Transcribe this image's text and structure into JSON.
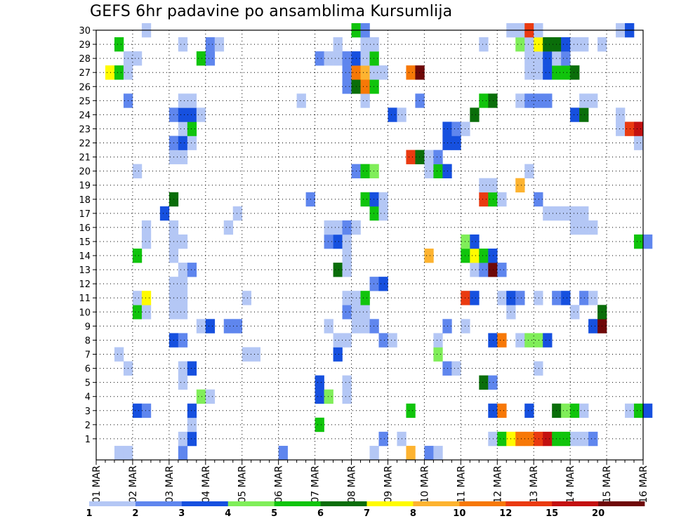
{
  "chart_data": {
    "type": "heatmap",
    "title": "GEFS 6hr padavine po ansamblima Kursumlija",
    "xlabel": "",
    "ylabel": "",
    "x_ticks": [
      "01 MAR",
      "02 MAR",
      "03 MAR",
      "04 MAR",
      "05 MAR",
      "06 MAR",
      "07 MAR",
      "08 MAR",
      "09 MAR",
      "10 MAR",
      "11 MAR",
      "12 MAR",
      "13 MAR",
      "14 MAR",
      "15 MAR",
      "16 MAR"
    ],
    "x_range_days": [
      0,
      15
    ],
    "step_hours": 6,
    "y_ticks": [
      1,
      2,
      3,
      4,
      5,
      6,
      7,
      8,
      9,
      10,
      11,
      12,
      13,
      14,
      15,
      16,
      17,
      18,
      19,
      20,
      21,
      22,
      23,
      24,
      25,
      26,
      27,
      28,
      29,
      30
    ],
    "y_range": [
      0,
      30
    ],
    "grid": "dotted",
    "legend": {
      "placement": "bottom",
      "labels": [
        "1",
        "2",
        "3",
        "4",
        "5",
        "6",
        "7",
        "8",
        "10",
        "12",
        "15",
        "20"
      ],
      "colors": [
        "#b4c7f5",
        "#5f86ee",
        "#1650df",
        "#80ee59",
        "#10c40c",
        "#0a6e0a",
        "#fffb00",
        "#fdb330",
        "#f77807",
        "#ea3a10",
        "#c31010",
        "#6f0808"
      ]
    },
    "members": [
      {
        "member": 0,
        "cells": [
          [
            2,
            1
          ],
          [
            3,
            1
          ],
          [
            9,
            2
          ],
          [
            20,
            2
          ],
          [
            30,
            1
          ],
          [
            34,
            8
          ],
          [
            36,
            2
          ],
          [
            37,
            1
          ]
        ]
      },
      {
        "member": 1,
        "cells": [
          [
            9,
            1
          ],
          [
            10,
            3
          ],
          [
            31,
            2
          ],
          [
            33,
            1
          ],
          [
            43,
            1
          ],
          [
            44,
            5
          ],
          [
            45,
            7
          ],
          [
            46,
            9
          ],
          [
            47,
            9
          ],
          [
            48,
            10
          ],
          [
            49,
            11
          ],
          [
            50,
            5
          ],
          [
            51,
            5
          ],
          [
            52,
            1
          ],
          [
            53,
            1
          ],
          [
            54,
            2
          ]
        ]
      },
      {
        "member": 2,
        "cells": [
          [
            10,
            1
          ],
          [
            24,
            5
          ]
        ]
      },
      {
        "member": 3,
        "cells": [
          [
            4,
            3
          ],
          [
            5,
            2
          ],
          [
            10,
            3
          ],
          [
            34,
            5
          ],
          [
            43,
            3
          ],
          [
            44,
            9
          ],
          [
            47,
            3
          ],
          [
            50,
            6
          ],
          [
            51,
            4
          ],
          [
            52,
            5
          ],
          [
            53,
            1
          ],
          [
            58,
            1
          ],
          [
            59,
            5
          ],
          [
            60,
            3
          ]
        ]
      },
      {
        "member": 4,
        "cells": [
          [
            11,
            4
          ],
          [
            12,
            1
          ],
          [
            24,
            3
          ],
          [
            25,
            4
          ],
          [
            27,
            1
          ]
        ]
      },
      {
        "member": 5,
        "cells": [
          [
            9,
            1
          ],
          [
            24,
            3
          ],
          [
            27,
            1
          ],
          [
            42,
            6
          ],
          [
            43,
            2
          ]
        ]
      },
      {
        "member": 6,
        "cells": [
          [
            3,
            1
          ],
          [
            9,
            1
          ],
          [
            10,
            3
          ],
          [
            38,
            2
          ],
          [
            39,
            1
          ],
          [
            48,
            1
          ]
        ]
      },
      {
        "member": 7,
        "cells": [
          [
            2,
            1
          ],
          [
            16,
            1
          ],
          [
            17,
            1
          ],
          [
            26,
            3
          ],
          [
            37,
            4
          ]
        ]
      },
      {
        "member": 8,
        "cells": [
          [
            8,
            3
          ],
          [
            9,
            2
          ],
          [
            26,
            1
          ],
          [
            27,
            1
          ],
          [
            31,
            2
          ],
          [
            32,
            1
          ],
          [
            37,
            1
          ],
          [
            43,
            3
          ],
          [
            44,
            9
          ],
          [
            46,
            1
          ],
          [
            47,
            4
          ],
          [
            48,
            4
          ],
          [
            49,
            3
          ]
        ]
      },
      {
        "member": 9,
        "cells": [
          [
            11,
            1
          ],
          [
            12,
            3
          ],
          [
            14,
            2
          ],
          [
            15,
            2
          ],
          [
            25,
            1
          ],
          [
            28,
            1
          ],
          [
            29,
            1
          ],
          [
            30,
            2
          ],
          [
            38,
            2
          ],
          [
            40,
            1
          ],
          [
            54,
            3
          ],
          [
            55,
            12
          ]
        ]
      },
      {
        "member": 10,
        "cells": [
          [
            4,
            5
          ],
          [
            5,
            1
          ],
          [
            8,
            1
          ],
          [
            9,
            1
          ],
          [
            27,
            2
          ],
          [
            28,
            1
          ],
          [
            29,
            1
          ],
          [
            45,
            1
          ],
          [
            52,
            1
          ],
          [
            55,
            6
          ]
        ]
      },
      {
        "member": 11,
        "cells": [
          [
            4,
            1
          ],
          [
            5,
            7
          ],
          [
            8,
            1
          ],
          [
            9,
            1
          ],
          [
            16,
            1
          ],
          [
            27,
            1
          ],
          [
            28,
            1
          ],
          [
            29,
            5
          ],
          [
            40,
            10
          ],
          [
            41,
            3
          ],
          [
            44,
            1
          ],
          [
            45,
            3
          ],
          [
            46,
            2
          ],
          [
            48,
            1
          ],
          [
            50,
            2
          ],
          [
            51,
            3
          ],
          [
            53,
            2
          ],
          [
            54,
            1
          ]
        ]
      },
      {
        "member": 12,
        "cells": [
          [
            8,
            1
          ],
          [
            9,
            1
          ],
          [
            30,
            2
          ],
          [
            31,
            3
          ]
        ]
      },
      {
        "member": 13,
        "cells": [
          [
            9,
            1
          ],
          [
            10,
            2
          ],
          [
            26,
            6
          ],
          [
            27,
            1
          ],
          [
            41,
            1
          ],
          [
            42,
            2
          ],
          [
            43,
            15
          ],
          [
            44,
            2
          ]
        ]
      },
      {
        "member": 14,
        "cells": [
          [
            4,
            5
          ],
          [
            8,
            1
          ],
          [
            27,
            1
          ],
          [
            36,
            8
          ],
          [
            40,
            5
          ],
          [
            41,
            7
          ],
          [
            42,
            5
          ],
          [
            43,
            3
          ]
        ]
      },
      {
        "member": 15,
        "cells": [
          [
            5,
            1
          ],
          [
            8,
            1
          ],
          [
            9,
            1
          ],
          [
            25,
            2
          ],
          [
            26,
            3
          ],
          [
            27,
            1
          ],
          [
            40,
            4
          ],
          [
            41,
            3
          ],
          [
            59,
            5
          ],
          [
            60,
            2
          ]
        ]
      },
      {
        "member": 16,
        "cells": [
          [
            5,
            1
          ],
          [
            8,
            1
          ],
          [
            14,
            1
          ],
          [
            25,
            1
          ],
          [
            26,
            1
          ],
          [
            27,
            2
          ],
          [
            28,
            1
          ],
          [
            52,
            1
          ],
          [
            53,
            1
          ],
          [
            54,
            1
          ]
        ]
      },
      {
        "member": 17,
        "cells": [
          [
            7,
            3
          ],
          [
            15,
            1
          ],
          [
            30,
            5
          ],
          [
            31,
            1
          ],
          [
            49,
            1
          ],
          [
            50,
            1
          ],
          [
            51,
            1
          ],
          [
            52,
            1
          ],
          [
            53,
            1
          ]
        ]
      },
      {
        "member": 18,
        "cells": [
          [
            8,
            6
          ],
          [
            23,
            2
          ],
          [
            29,
            5
          ],
          [
            30,
            3
          ],
          [
            31,
            1
          ],
          [
            42,
            10
          ],
          [
            43,
            5
          ],
          [
            44,
            1
          ],
          [
            48,
            2
          ]
        ]
      },
      {
        "member": 19,
        "cells": [
          [
            42,
            1
          ],
          [
            43,
            1
          ],
          [
            46,
            8
          ]
        ]
      },
      {
        "member": 20,
        "cells": [
          [
            4,
            1
          ],
          [
            28,
            2
          ],
          [
            29,
            5
          ],
          [
            30,
            4
          ],
          [
            36,
            1
          ],
          [
            37,
            5
          ],
          [
            38,
            3
          ],
          [
            47,
            1
          ]
        ]
      },
      {
        "member": 21,
        "cells": [
          [
            8,
            1
          ],
          [
            9,
            1
          ],
          [
            34,
            10
          ],
          [
            35,
            6
          ],
          [
            36,
            1
          ],
          [
            37,
            2
          ]
        ]
      },
      {
        "member": 22,
        "cells": [
          [
            8,
            2
          ],
          [
            9,
            3
          ],
          [
            10,
            1
          ],
          [
            38,
            3
          ],
          [
            39,
            3
          ],
          [
            59,
            1
          ]
        ]
      },
      {
        "member": 23,
        "cells": [
          [
            9,
            1
          ],
          [
            10,
            5
          ],
          [
            38,
            3
          ],
          [
            39,
            2
          ],
          [
            40,
            1
          ],
          [
            57,
            1
          ],
          [
            58,
            10
          ],
          [
            59,
            11
          ]
        ]
      },
      {
        "member": 24,
        "cells": [
          [
            8,
            2
          ],
          [
            9,
            3
          ],
          [
            10,
            3
          ],
          [
            11,
            1
          ],
          [
            32,
            3
          ],
          [
            33,
            1
          ],
          [
            41,
            6
          ],
          [
            52,
            3
          ],
          [
            53,
            6
          ],
          [
            57,
            1
          ]
        ]
      },
      {
        "member": 25,
        "cells": [
          [
            3,
            2
          ],
          [
            9,
            1
          ],
          [
            10,
            1
          ],
          [
            22,
            1
          ],
          [
            29,
            1
          ],
          [
            35,
            2
          ],
          [
            42,
            5
          ],
          [
            43,
            6
          ],
          [
            46,
            1
          ],
          [
            47,
            2
          ],
          [
            48,
            2
          ],
          [
            49,
            2
          ],
          [
            53,
            1
          ],
          [
            54,
            1
          ]
        ]
      },
      {
        "member": 26,
        "cells": [
          [
            27,
            2
          ],
          [
            28,
            6
          ],
          [
            29,
            9
          ],
          [
            30,
            5
          ]
        ]
      },
      {
        "member": 27,
        "cells": [
          [
            1,
            7
          ],
          [
            2,
            5
          ],
          [
            3,
            1
          ],
          [
            27,
            2
          ],
          [
            28,
            9
          ],
          [
            29,
            8
          ],
          [
            30,
            1
          ],
          [
            31,
            1
          ],
          [
            34,
            9
          ],
          [
            35,
            20
          ],
          [
            47,
            1
          ],
          [
            48,
            1
          ],
          [
            49,
            3
          ],
          [
            50,
            5
          ],
          [
            51,
            5
          ],
          [
            52,
            6
          ]
        ]
      },
      {
        "member": 28,
        "cells": [
          [
            3,
            1
          ],
          [
            4,
            1
          ],
          [
            11,
            5
          ],
          [
            12,
            2
          ],
          [
            24,
            2
          ],
          [
            25,
            1
          ],
          [
            26,
            1
          ],
          [
            27,
            2
          ],
          [
            28,
            3
          ],
          [
            29,
            1
          ],
          [
            30,
            5
          ],
          [
            47,
            1
          ],
          [
            48,
            1
          ],
          [
            49,
            3
          ],
          [
            50,
            1
          ],
          [
            51,
            2
          ]
        ]
      },
      {
        "member": 29,
        "cells": [
          [
            2,
            5
          ],
          [
            9,
            1
          ],
          [
            12,
            2
          ],
          [
            13,
            1
          ],
          [
            26,
            1
          ],
          [
            29,
            1
          ],
          [
            30,
            1
          ],
          [
            42,
            1
          ],
          [
            46,
            4
          ],
          [
            47,
            1
          ],
          [
            48,
            7
          ],
          [
            49,
            6
          ],
          [
            50,
            6
          ],
          [
            51,
            3
          ],
          [
            52,
            1
          ],
          [
            53,
            1
          ],
          [
            55,
            1
          ]
        ]
      },
      {
        "member": 30,
        "cells": [
          [
            5,
            1
          ],
          [
            28,
            5
          ],
          [
            29,
            2
          ],
          [
            45,
            1
          ],
          [
            46,
            1
          ],
          [
            47,
            10
          ],
          [
            48,
            1
          ],
          [
            57,
            1
          ],
          [
            58,
            3
          ]
        ]
      }
    ]
  }
}
